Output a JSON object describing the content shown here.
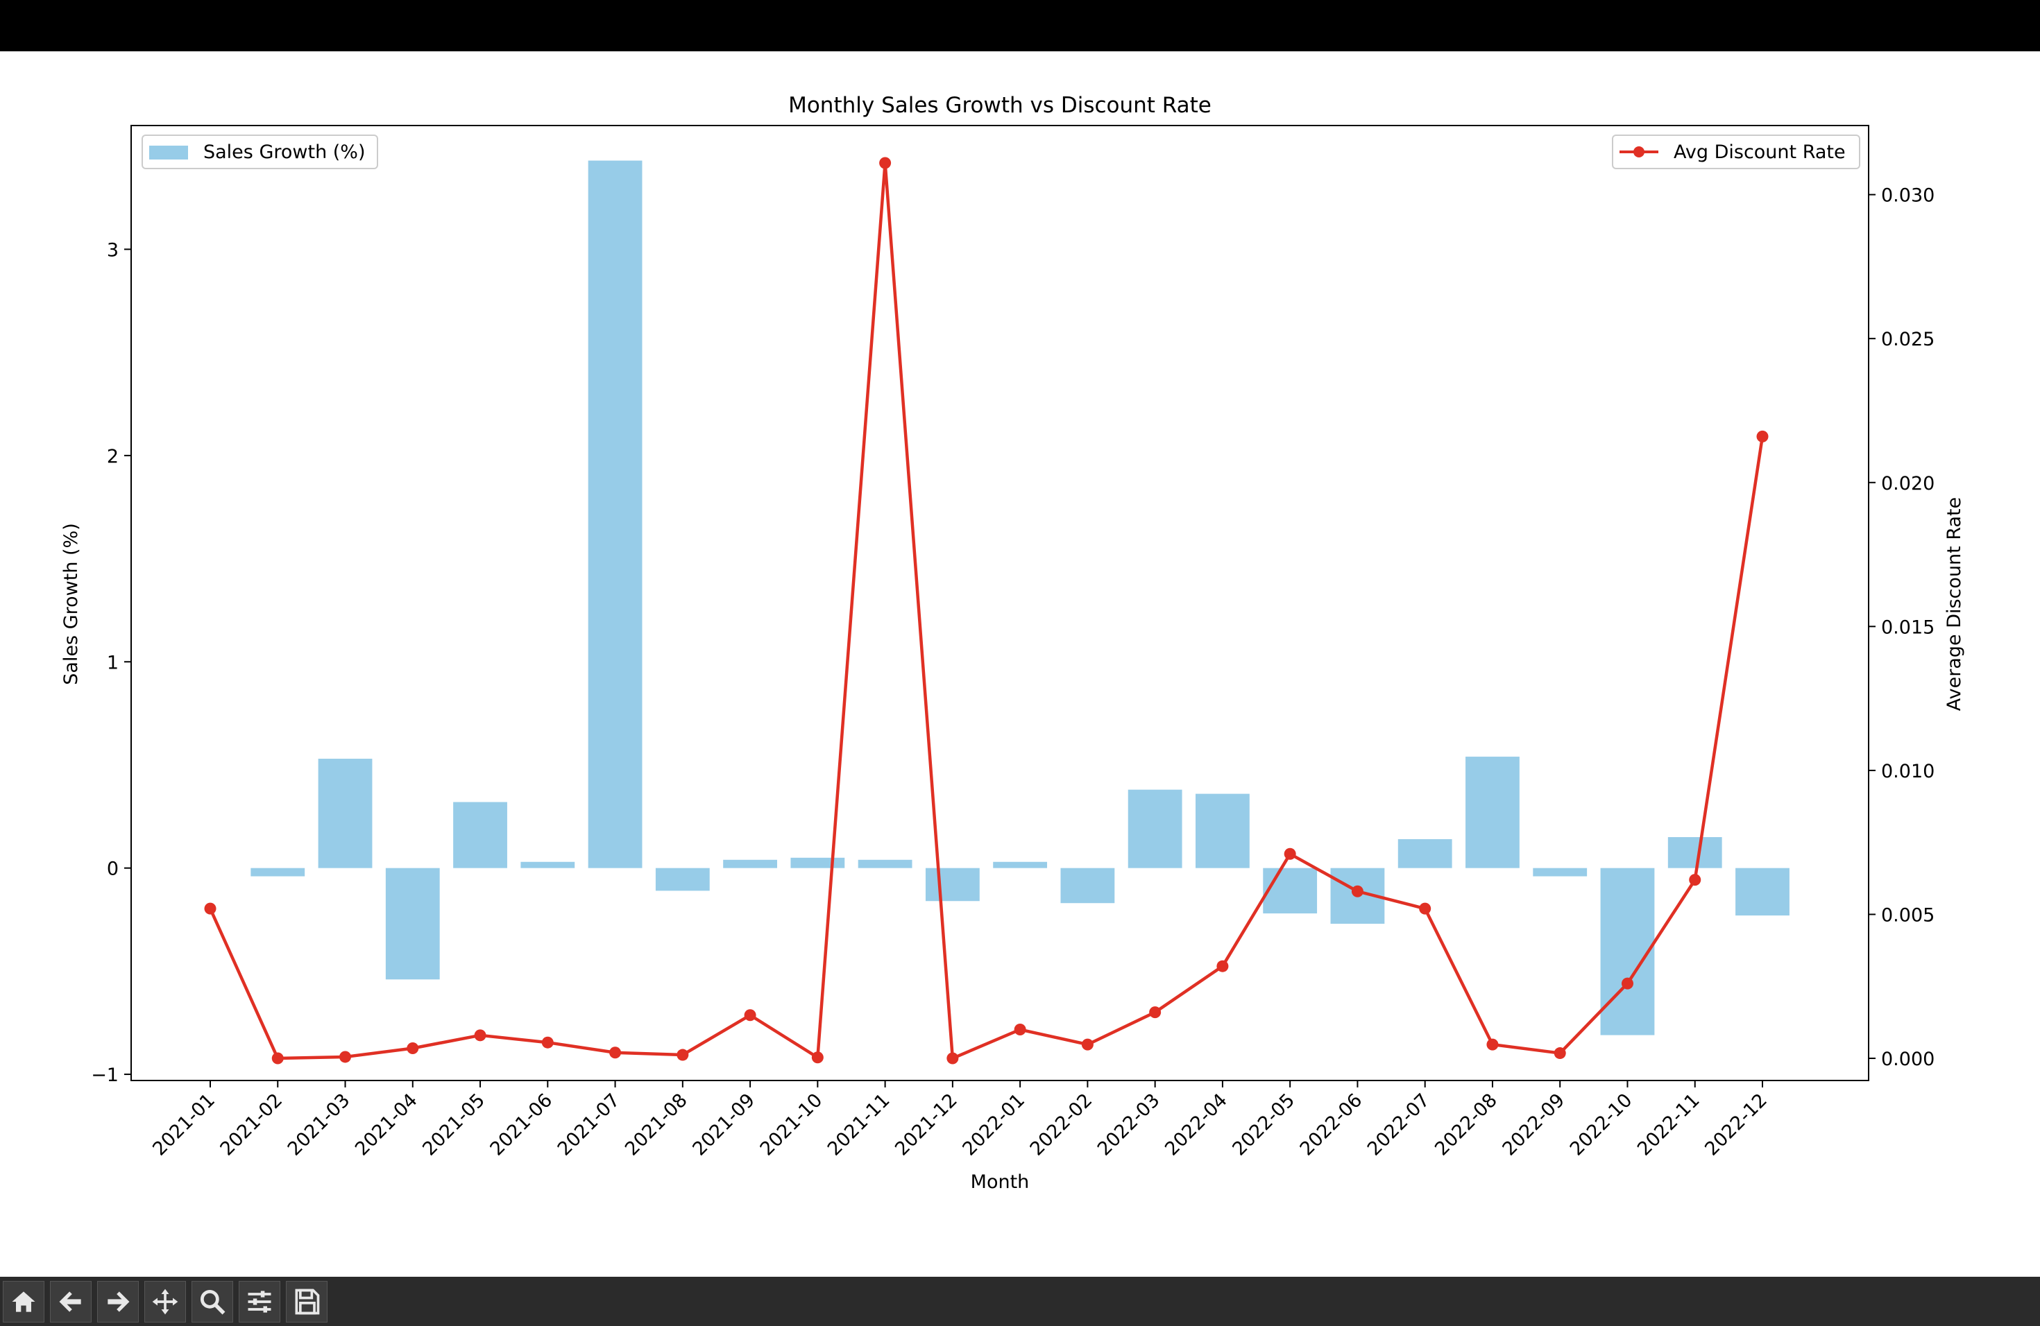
{
  "toolbar": {
    "items": [
      {
        "name": "home-icon"
      },
      {
        "name": "back-arrow-icon"
      },
      {
        "name": "forward-arrow-icon"
      },
      {
        "name": "pan-icon"
      },
      {
        "name": "zoom-icon"
      },
      {
        "name": "configure-subplots-icon"
      },
      {
        "name": "save-icon"
      }
    ]
  },
  "chart_data": {
    "type": "bar+line",
    "title": "Monthly Sales Growth vs Discount Rate",
    "xlabel": "Month",
    "ylabel_left": "Sales Growth (%)",
    "ylabel_right": "Average Discount Rate",
    "categories": [
      "2021-01",
      "2021-02",
      "2021-03",
      "2021-04",
      "2021-05",
      "2021-06",
      "2021-07",
      "2021-08",
      "2021-09",
      "2021-10",
      "2021-11",
      "2021-12",
      "2022-01",
      "2022-02",
      "2022-03",
      "2022-04",
      "2022-05",
      "2022-06",
      "2022-07",
      "2022-08",
      "2022-09",
      "2022-10",
      "2022-11",
      "2022-12"
    ],
    "left_axis": {
      "ylim": [
        -1.03,
        3.6
      ],
      "ticks": [
        -1,
        0,
        1,
        2,
        3
      ],
      "tick_labels": [
        "−1",
        "0",
        "1",
        "2",
        "3"
      ]
    },
    "right_axis": {
      "ylim": [
        -0.00077,
        0.0324
      ],
      "ticks": [
        0.0,
        0.005,
        0.01,
        0.015,
        0.02,
        0.025,
        0.03
      ],
      "tick_labels": [
        "0.000",
        "0.005",
        "0.010",
        "0.015",
        "0.020",
        "0.025",
        "0.030"
      ]
    },
    "series": [
      {
        "name": "Sales Growth (%)",
        "type": "bar",
        "axis": "left",
        "color": "#97cce8",
        "values": [
          null,
          -0.04,
          0.53,
          -0.54,
          0.32,
          0.03,
          3.43,
          -0.11,
          0.04,
          0.05,
          0.04,
          -0.16,
          0.03,
          -0.17,
          0.38,
          0.36,
          -0.22,
          -0.27,
          0.14,
          0.54,
          -0.04,
          -0.81,
          0.15,
          -0.23
        ]
      },
      {
        "name": "Avg Discount Rate",
        "type": "line",
        "axis": "right",
        "color": "#e03024",
        "values": [
          0.0052,
          0.0,
          5e-05,
          0.00035,
          0.0008,
          0.00055,
          0.0002,
          0.00012,
          0.0015,
          3e-05,
          0.0311,
          0.0,
          0.001,
          0.00048,
          0.0016,
          0.0032,
          0.0071,
          0.0058,
          0.0052,
          0.00048,
          0.00018,
          0.0026,
          0.0062,
          0.0216
        ]
      }
    ],
    "legend_left": {
      "placement": "upper-left",
      "label": "Sales Growth (%)"
    },
    "legend_right": {
      "placement": "upper-right",
      "label": "Avg Discount Rate"
    },
    "grid": false
  }
}
